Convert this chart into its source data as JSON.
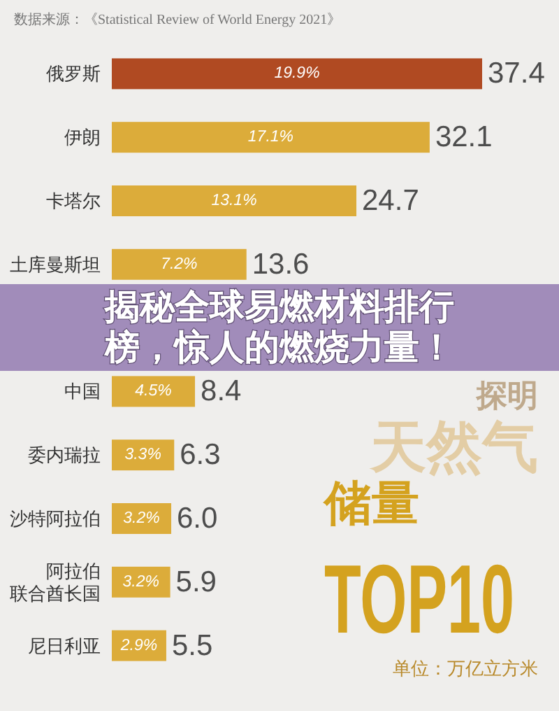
{
  "chart_data": {
    "type": "bar",
    "orientation": "horizontal",
    "title": "揭秘全球易燃材料排行榜，惊人的燃烧力量！",
    "categories": [
      "俄罗斯",
      "伊朗",
      "卡塔尔",
      "土库曼斯坦",
      null,
      "中国",
      "委内瑞拉",
      "沙特阿拉伯",
      "阿拉伯联合酋长国",
      "尼日利亚"
    ],
    "values": [
      37.4,
      32.1,
      24.7,
      13.6,
      null,
      8.4,
      6.3,
      6.0,
      5.9,
      5.5
    ],
    "value_labels": [
      "37.4",
      "32.1",
      "24.7",
      "13.6",
      null,
      "8.4",
      "6.3",
      "6.0",
      "5.9",
      "5.5"
    ],
    "colors": [
      "#b04a22",
      "#dcac3a",
      "#dcac3a",
      "#dcac3a",
      null,
      "#dcac3a",
      "#dcac3a",
      "#dcac3a",
      "#dcac3a",
      "#dcac3a"
    ],
    "annotations": [
      "数据来源：《Statistical Review of World Energy 2021》",
      "探明",
      "天然气",
      "储量",
      "TOP10",
      "单位：万亿立方米",
      "19.9%",
      "17.1%",
      "13.1%",
      "7.2%",
      "4.5%",
      "3.3%",
      "3.2%",
      "3.2%",
      "2.9%"
    ]
  }
}
